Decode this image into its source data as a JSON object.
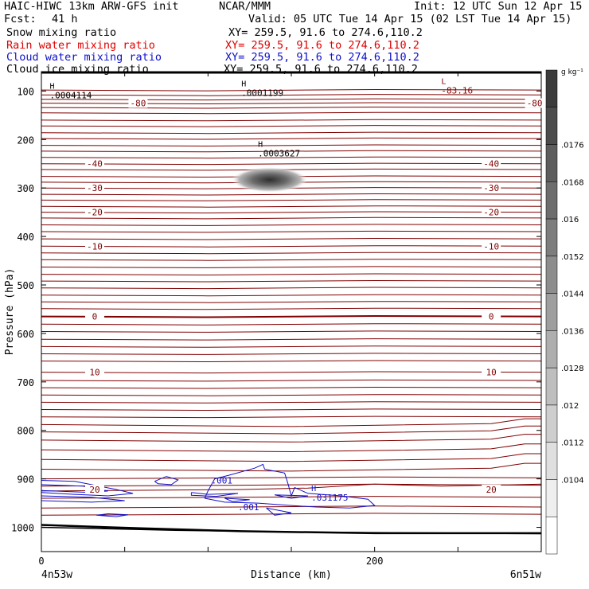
{
  "header": {
    "model": "HAIC-HIWC 13km ARW-GFS init",
    "org": "NCAR/MMM",
    "init": "Init: 12 UTC Sun 12 Apr 15",
    "fcst_label": "Fcst:",
    "fcst_value": "41 h",
    "valid": "Valid: 05 UTC Tue 14 Apr 15 (02 LST Tue 14 Apr 15)",
    "fields": [
      {
        "name": "Snow mixing ratio",
        "xy": "XY= 259.5, 91.6 to 274.6,110.2",
        "color": "#000000"
      },
      {
        "name": "Rain water mixing ratio",
        "xy": "XY= 259.5, 91.6 to 274.6,110.2",
        "color": "#e00000"
      },
      {
        "name": "Cloud water mixing ratio",
        "xy": "XY= 259.5, 91.6 to 274.6,110.2",
        "color": "#1010cc"
      },
      {
        "name": "Cloud ice mixing ratio",
        "xy": "XY= 259.5, 91.6 to 274.6,110.2",
        "color": "#000000"
      }
    ]
  },
  "chart_data": {
    "type": "cross-section",
    "xlabel": "Distance (km)",
    "ylabel": "Pressure (hPa)",
    "xlim": [
      0,
      300
    ],
    "ylim": [
      1050,
      60
    ],
    "x_ticks": [
      0,
      200
    ],
    "y_ticks": [
      100,
      200,
      300,
      400,
      500,
      600,
      700,
      800,
      900,
      1000
    ],
    "left_endpoint": "4n53w",
    "right_endpoint": "6n51w",
    "colorbar": {
      "unit": "g kg⁻¹",
      "labels": [
        ".0176",
        ".0168",
        ".016",
        ".0152",
        ".0144",
        ".0136",
        ".0128",
        ".012",
        ".0112",
        ".0104"
      ]
    },
    "temperature_isotherms": [
      {
        "label": "-80",
        "p": 125
      },
      {
        "label": "-40",
        "p": 250
      },
      {
        "label": "-30",
        "p": 300
      },
      {
        "label": "-20",
        "p": 350
      },
      {
        "label": "-10",
        "p": 420
      },
      {
        "label": "0",
        "p": 565
      },
      {
        "label": "10",
        "p": 680
      },
      {
        "label": "20",
        "p": 925
      }
    ],
    "extrema": [
      {
        "label": "H",
        "value": ".0004114",
        "x": 5,
        "p": 115
      },
      {
        "label": "H",
        "value": ".0001199",
        "x": 120,
        "p": 110
      },
      {
        "label": "H",
        "value": ".0003627",
        "x": 130,
        "p": 235
      },
      {
        "label": "L",
        "value": "-83.16",
        "x": 240,
        "p": 105
      },
      {
        "label": "H",
        "value": ".031175",
        "x": 162,
        "p": 945
      }
    ],
    "cloud_water_labels": [
      ".001",
      ".001"
    ],
    "snow_maximum": {
      "x": 137,
      "p": 283
    },
    "colors": {
      "isotherm": "#800000",
      "cloud_water": "#1010cc",
      "terrain": "#000000"
    }
  }
}
